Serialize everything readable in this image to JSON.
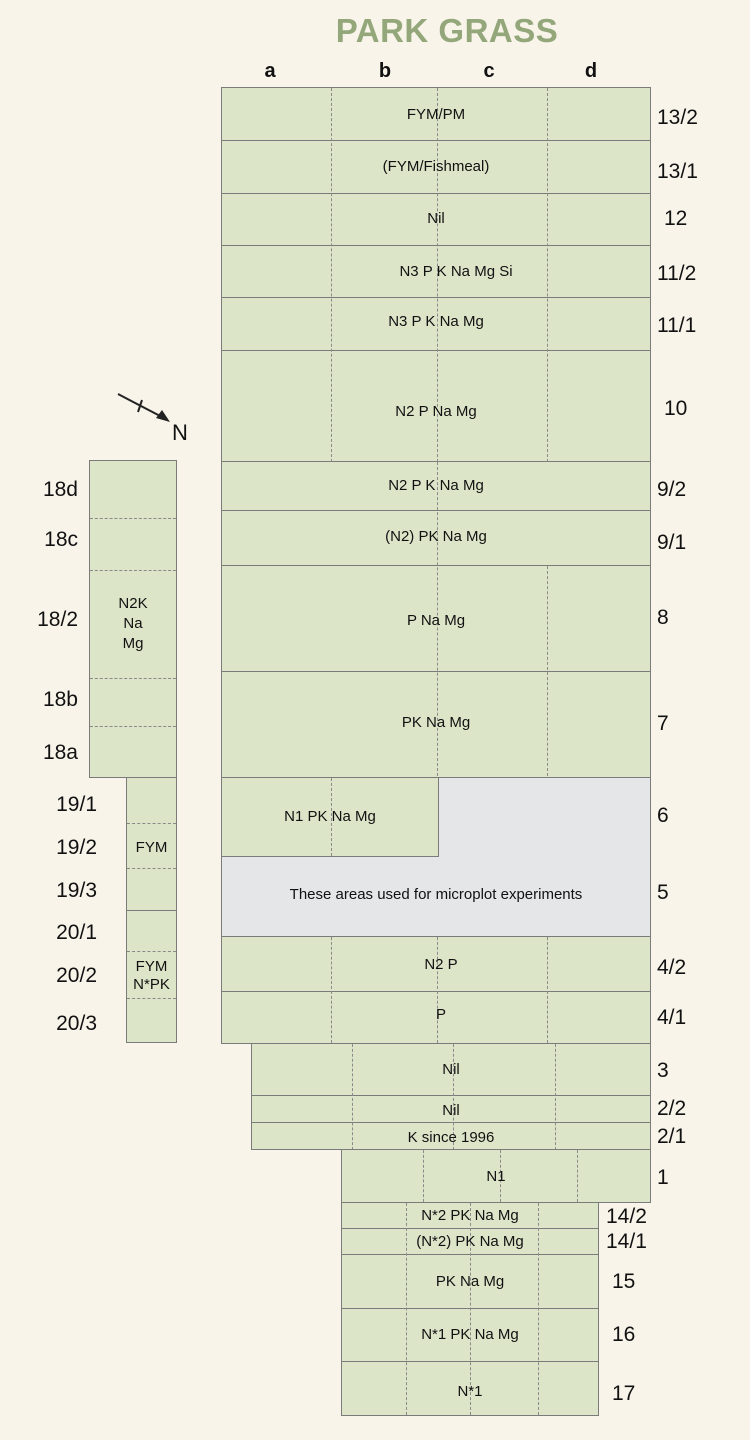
{
  "title": "PARK GRASS",
  "columns": [
    "a",
    "b",
    "c",
    "d"
  ],
  "north": "N",
  "main_plots": [
    {
      "num": "13/2",
      "label": "FYM/PM"
    },
    {
      "num": "13/1",
      "label": "(FYM/Fishmeal)"
    },
    {
      "num": "12",
      "label": "Nil"
    },
    {
      "num": "11/2",
      "label": "N3 P K Na Mg Si"
    },
    {
      "num": "11/1",
      "label": "N3 P K Na Mg"
    },
    {
      "num": "10",
      "label": "N2 P Na Mg"
    },
    {
      "num": "9/2",
      "label": "N2 P K Na Mg"
    },
    {
      "num": "9/1",
      "label": "(N2) PK Na Mg"
    },
    {
      "num": "8",
      "label": "P Na Mg"
    },
    {
      "num": "7",
      "label": "PK Na Mg"
    },
    {
      "num": "6",
      "label": "N1 PK Na Mg"
    },
    {
      "num": "5",
      "label": "These areas used for microplot experiments"
    },
    {
      "num": "4/2",
      "label": "N2 P"
    },
    {
      "num": "4/1",
      "label": "P"
    },
    {
      "num": "3",
      "label": "Nil"
    },
    {
      "num": "2/2",
      "label": "Nil"
    },
    {
      "num": "2/1",
      "label": "K since 1996"
    },
    {
      "num": "1",
      "label": "N1"
    },
    {
      "num": "14/2",
      "label": "N*2 PK Na Mg"
    },
    {
      "num": "14/1",
      "label": "(N*2) PK Na Mg"
    },
    {
      "num": "15",
      "label": "PK Na Mg"
    },
    {
      "num": "16",
      "label": "N*1 PK Na Mg"
    },
    {
      "num": "17",
      "label": "N*1"
    }
  ],
  "left_plots": {
    "nums": [
      "18d",
      "18c",
      "18/2",
      "18b",
      "18a",
      "19/1",
      "19/2",
      "19/3",
      "20/1",
      "20/2",
      "20/3"
    ],
    "label_18": [
      "N2K",
      "Na",
      "Mg"
    ],
    "label_19": "FYM",
    "label_20": [
      "FYM",
      "N*PK"
    ]
  },
  "colors": {
    "plot": "#dde5c9",
    "micro": "#e5e6e8",
    "title": "#93a77a",
    "background": "#f8f4ea"
  }
}
